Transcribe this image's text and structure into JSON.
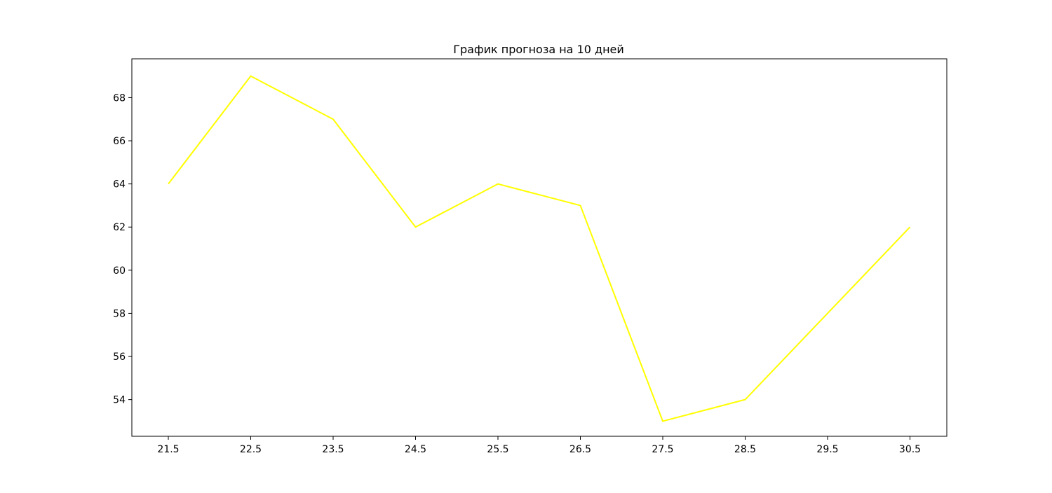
{
  "chart_data": {
    "type": "line",
    "title": "График прогноза на 10 дней",
    "xlabel": "",
    "ylabel": "",
    "x": [
      "21.5",
      "22.5",
      "23.5",
      "24.5",
      "25.5",
      "26.5",
      "27.5",
      "28.5",
      "29.5",
      "30.5"
    ],
    "series": [
      {
        "values": [
          64,
          69,
          67,
          62,
          64,
          63,
          53,
          54,
          58,
          62
        ],
        "color": "#ffff00"
      }
    ],
    "yticks": [
      54,
      56,
      58,
      60,
      62,
      64,
      66,
      68
    ],
    "ylim": [
      52.3,
      69.8
    ],
    "grid": false,
    "legend": "none"
  }
}
